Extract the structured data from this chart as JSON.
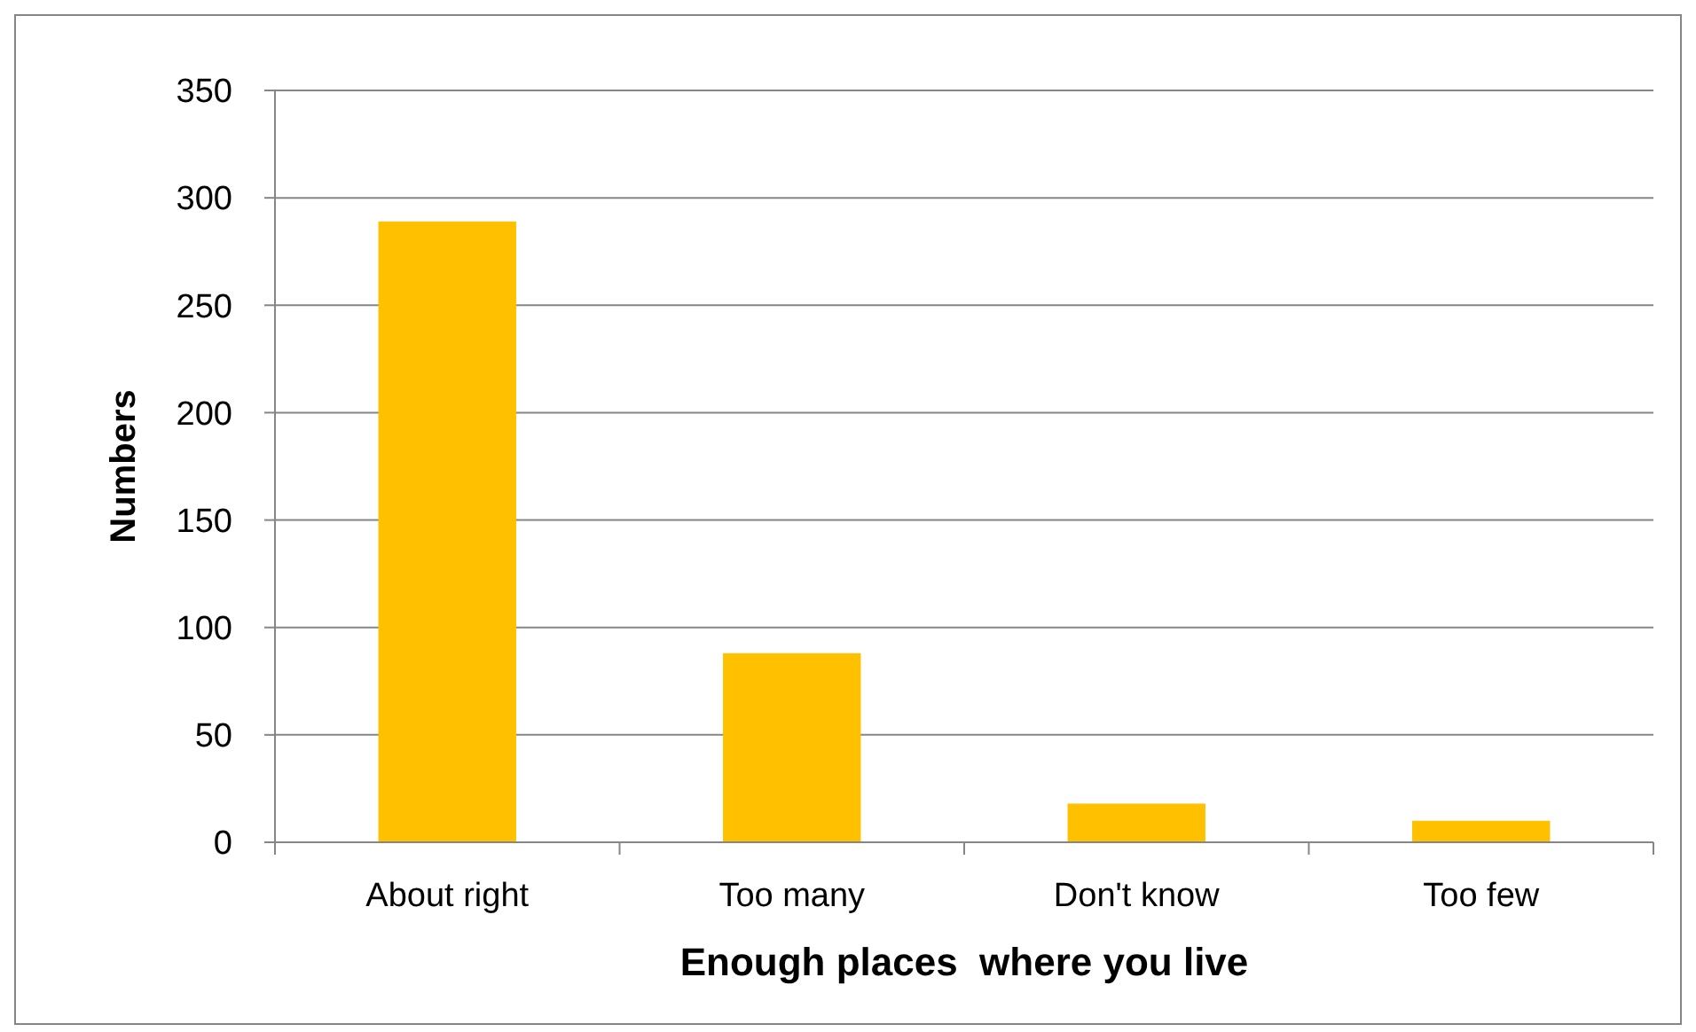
{
  "chart_data": {
    "type": "bar",
    "xlabel": "Enough places  where you live",
    "ylabel": "Numbers",
    "categories": [
      "About right",
      "Too many",
      "Don't know",
      "Too few"
    ],
    "values": [
      289,
      88,
      18,
      10
    ],
    "color": "#ffc000",
    "ylim": [
      0,
      350
    ],
    "yticks": [
      0,
      50,
      100,
      150,
      200,
      250,
      300,
      350
    ],
    "grid": "y"
  }
}
